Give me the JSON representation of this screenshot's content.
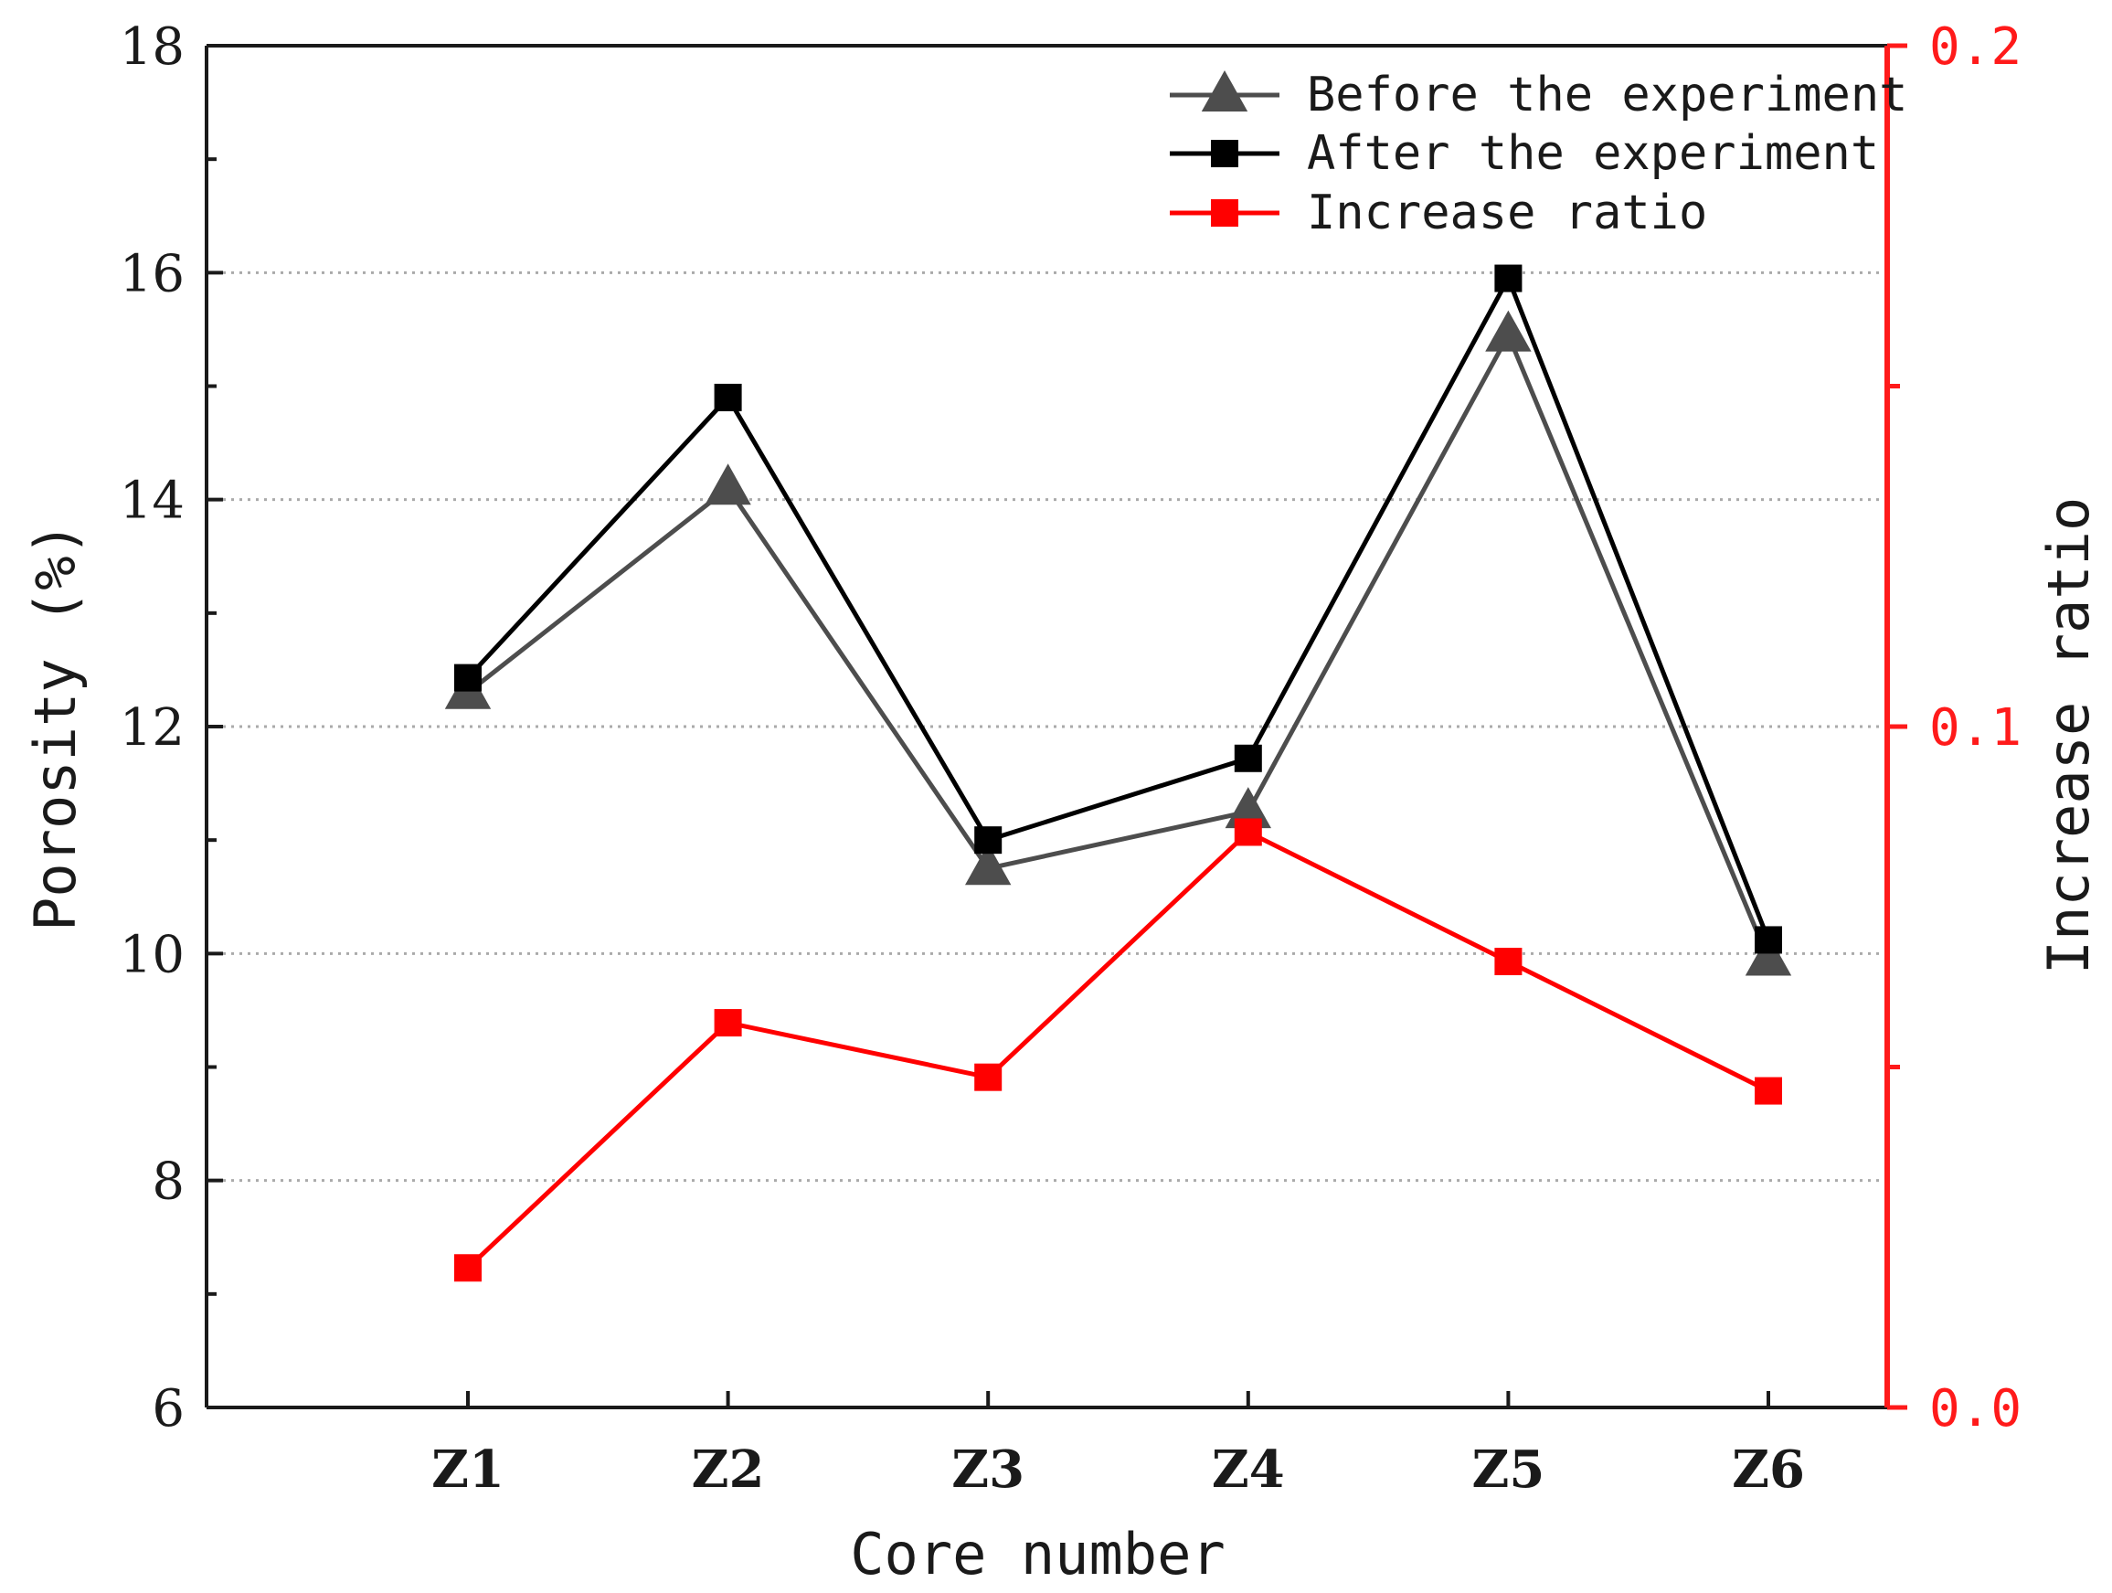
{
  "chart_data": {
    "type": "line",
    "title": "",
    "xlabel": "Core number",
    "ylabel": "Porosity (%)",
    "y2label": "Increase ratio",
    "categories": [
      "Z1",
      "Z2",
      "Z3",
      "Z4",
      "Z5",
      "Z6"
    ],
    "ylim": [
      6,
      18
    ],
    "yticks": [
      6,
      8,
      10,
      12,
      14,
      16,
      18
    ],
    "y2lim": [
      0.0,
      0.2
    ],
    "y2ticks": [
      "0.0",
      "0.1",
      "0.2"
    ],
    "grid": true,
    "legend_position": "top-right",
    "series": [
      {
        "name": "Before the experiment",
        "axis": "left",
        "marker": "triangle",
        "color": "#4d4d4d",
        "values": [
          12.3,
          14.1,
          10.75,
          11.25,
          15.45,
          9.95
        ]
      },
      {
        "name": "After the experiment",
        "axis": "left",
        "marker": "square",
        "color": "#000000",
        "values": [
          12.43,
          14.9,
          11.0,
          11.72,
          15.95,
          10.12
        ]
      },
      {
        "name": "Increase ratio",
        "axis": "right",
        "marker": "square",
        "color": "#ff0000",
        "values": [
          0.0205,
          0.0565,
          0.0485,
          0.0845,
          0.0655,
          0.0465
        ]
      }
    ]
  },
  "colors": {
    "axis": "#1a1a1a",
    "right_axis": "#ff1a1a",
    "grid": "#aaaaaa"
  }
}
